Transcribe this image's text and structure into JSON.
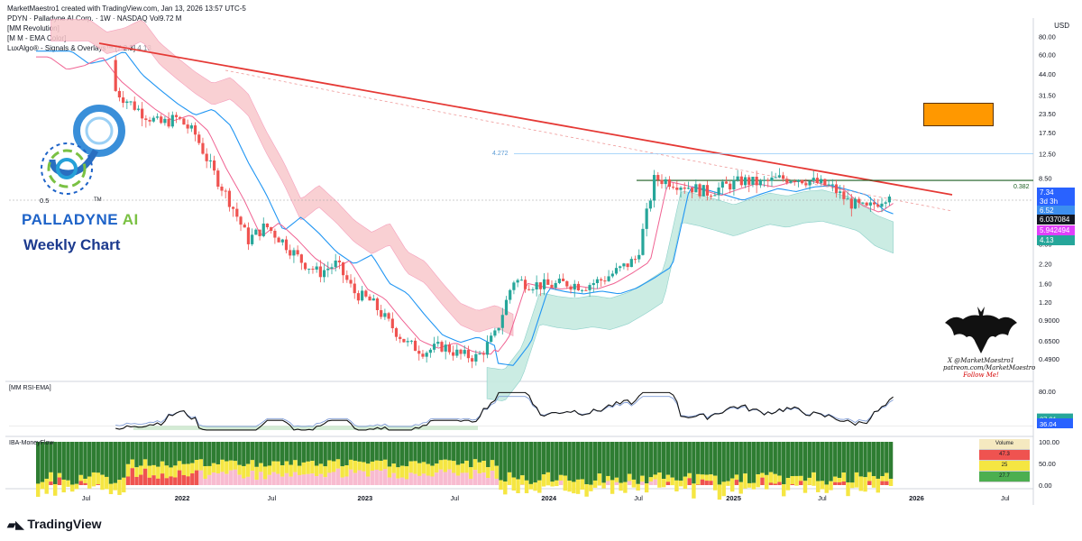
{
  "header": {
    "created_by": "MarketMaestro1 created with TradingView.com, Jan 13, 2026 13:57 UTC-5",
    "symbol_line": "PDYN · Palladyne AI Corp. · 1W · NASDAQ  Vol9.72 M",
    "indicator1": "[MM Revolution]",
    "indicator2": "[M M - EMA Color]",
    "indicator3": "LuxAlgo® - Signals & Overlays™ [7.2.3]",
    "indicator3_value": "4.13"
  },
  "currency": "USD",
  "price_axis_ticks": [
    "80.00",
    "60.00",
    "44.00",
    "31.50",
    "23.50",
    "17.50",
    "12.50",
    "8.50",
    "3.00",
    "2.20",
    "1.60",
    "1.20",
    "0.9000",
    "0.6500",
    "0.4900"
  ],
  "price_tags": [
    {
      "text": "7.34",
      "color": "#2962ff"
    },
    {
      "text": "3d 3h",
      "color": "#2962ff"
    },
    {
      "text": "6.52",
      "color": "#3d8eef"
    },
    {
      "text": "6.037084",
      "color": "#131722"
    },
    {
      "text": "5.942494",
      "color": "#e040fb"
    },
    {
      "text": "4.13",
      "color": "#26a69a"
    }
  ],
  "fib_labels": {
    "left": "4.272",
    "right": "0.382"
  },
  "brand": {
    "name_main": "PALLADYNE",
    "name_ai": "AI",
    "tagline": "Weekly Chart",
    "logo_number": "0.5",
    "logo_tm": "TM"
  },
  "signature": {
    "line1": "X @MarketMaestro1",
    "line2": "patreon.com/MarketMaestro",
    "line3": "Follow Me!"
  },
  "rsi_panel": {
    "label": "[MM RSI-EMA]",
    "ticks": [
      "80.00"
    ],
    "tag1": "37.01",
    "tag2": "36.04",
    "tag1_color": "#26a69a",
    "tag2_color": "#2962ff"
  },
  "money_panel": {
    "label": "IBA-MoneyFlow",
    "ticks": [
      "100.00",
      "50.00",
      "0.00"
    ]
  },
  "volume_table": {
    "header": "Volume",
    "rows": [
      {
        "text": "47.3",
        "color": "#ef5350"
      },
      {
        "text": "25",
        "color": "#f5e642"
      },
      {
        "text": "27.7",
        "color": "#4caf50"
      }
    ]
  },
  "time_axis": [
    "Jul",
    "2022",
    "Jul",
    "2023",
    "Jul",
    "2024",
    "Jul",
    "2025",
    "Jul",
    "2026",
    "Jul"
  ],
  "footer": {
    "logo_text": "TradingView"
  },
  "colors": {
    "downtrend": "#e53935",
    "bull": "#26a69a",
    "bear": "#ef5350",
    "ema": "#2196f3",
    "mm_ema": "#f06292",
    "orange_box": "#ff9800",
    "resistance": "#1b5e20"
  },
  "chart_data": {
    "type": "candlestick",
    "title": "PDYN · Palladyne AI Corp. · 1W · NASDAQ",
    "scale": "log",
    "ylim": [
      0.4,
      85
    ],
    "x_ticks": [
      "Jul",
      "2022",
      "Jul",
      "2023",
      "Jul",
      "2024",
      "Jul",
      "2025",
      "Jul",
      "2026",
      "Jul"
    ],
    "close_path": [
      {
        "x": 0.0,
        "y": 55
      },
      {
        "x": 0.02,
        "y": 45
      },
      {
        "x": 0.04,
        "y": 48
      },
      {
        "x": 0.06,
        "y": 55
      },
      {
        "x": 0.08,
        "y": 38
      },
      {
        "x": 0.1,
        "y": 30
      },
      {
        "x": 0.12,
        "y": 24
      },
      {
        "x": 0.14,
        "y": 20
      },
      {
        "x": 0.16,
        "y": 22
      },
      {
        "x": 0.18,
        "y": 17
      },
      {
        "x": 0.2,
        "y": 9.5
      },
      {
        "x": 0.22,
        "y": 5.8
      },
      {
        "x": 0.24,
        "y": 3.2
      },
      {
        "x": 0.26,
        "y": 4.0
      },
      {
        "x": 0.28,
        "y": 3.1
      },
      {
        "x": 0.3,
        "y": 2.3
      },
      {
        "x": 0.32,
        "y": 1.9
      },
      {
        "x": 0.34,
        "y": 2.2
      },
      {
        "x": 0.36,
        "y": 1.4
      },
      {
        "x": 0.38,
        "y": 1.2
      },
      {
        "x": 0.4,
        "y": 0.85
      },
      {
        "x": 0.42,
        "y": 0.62
      },
      {
        "x": 0.44,
        "y": 0.55
      },
      {
        "x": 0.46,
        "y": 0.6
      },
      {
        "x": 0.48,
        "y": 0.52
      },
      {
        "x": 0.5,
        "y": 0.5
      },
      {
        "x": 0.52,
        "y": 0.72
      },
      {
        "x": 0.54,
        "y": 1.7
      },
      {
        "x": 0.56,
        "y": 1.6
      },
      {
        "x": 0.58,
        "y": 1.55
      },
      {
        "x": 0.6,
        "y": 1.62
      },
      {
        "x": 0.62,
        "y": 1.55
      },
      {
        "x": 0.64,
        "y": 1.7
      },
      {
        "x": 0.66,
        "y": 2.0
      },
      {
        "x": 0.68,
        "y": 2.4
      },
      {
        "x": 0.7,
        "y": 8.5
      },
      {
        "x": 0.72,
        "y": 8.0
      },
      {
        "x": 0.74,
        "y": 7.4
      },
      {
        "x": 0.76,
        "y": 6.8
      },
      {
        "x": 0.78,
        "y": 7.5
      },
      {
        "x": 0.8,
        "y": 8.2
      },
      {
        "x": 0.82,
        "y": 7.8
      },
      {
        "x": 0.84,
        "y": 8.4
      },
      {
        "x": 0.86,
        "y": 8.6
      },
      {
        "x": 0.88,
        "y": 8.0
      },
      {
        "x": 0.9,
        "y": 7.4
      },
      {
        "x": 0.92,
        "y": 5.8
      },
      {
        "x": 0.94,
        "y": 5.2
      },
      {
        "x": 0.96,
        "y": 6.3
      },
      {
        "x": 0.97,
        "y": 7.34
      }
    ],
    "last_close": 7.34,
    "ema": 6.52,
    "mm_ema": 5.942494,
    "signals_overlay": 4.13,
    "fib_level": {
      "name": "0.382",
      "price": 8.2
    },
    "fib_upper": {
      "name": "4.272",
      "price": 12.5
    },
    "rsi": 37.01,
    "rsi_ema": 36.04
  }
}
